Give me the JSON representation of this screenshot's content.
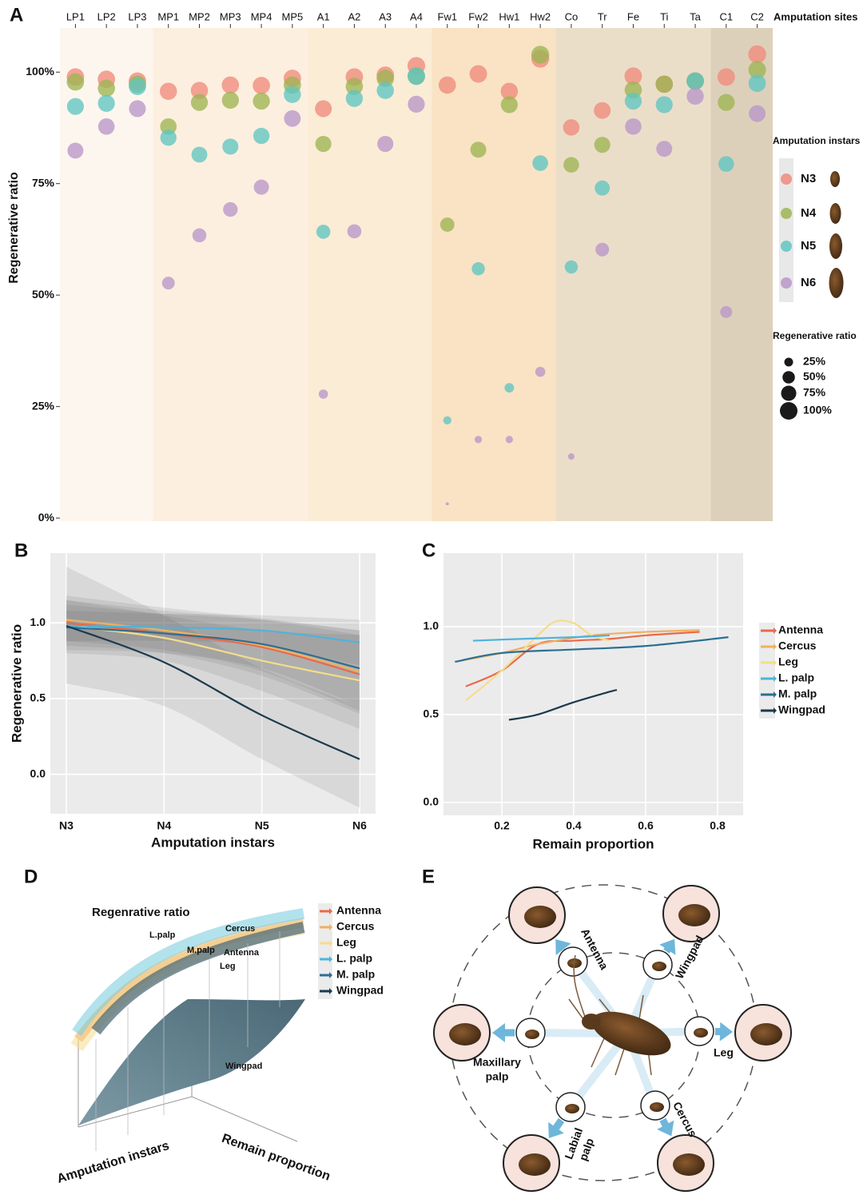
{
  "chart_data": [
    {
      "type": "dot",
      "panel_label": "A",
      "x_label": "Amputation sites",
      "y_label": "Regenerative ratio",
      "categories": [
        "LP1",
        "LP2",
        "LP3",
        "MP1",
        "MP2",
        "MP3",
        "MP4",
        "MP5",
        "A1",
        "A2",
        "A3",
        "A4",
        "Fw1",
        "Fw2",
        "Hw1",
        "Hw2",
        "Co",
        "Tr",
        "Fe",
        "Ti",
        "Ta",
        "C1",
        "C2"
      ],
      "series": [
        {
          "name": "N3",
          "color": "#f08a7c",
          "values": [
            98.9,
            98.4,
            98,
            95.7,
            95.9,
            97.1,
            97,
            98.6,
            91.8,
            98.9,
            99.3,
            101.4,
            97.1,
            99.6,
            95.7,
            103,
            87.6,
            91.4,
            99.1,
            97.3,
            98,
            98.9,
            104
          ]
        },
        {
          "name": "N4",
          "color": "#9cb552",
          "values": [
            97.8,
            96.4,
            97.3,
            87.8,
            93.2,
            93.7,
            93.5,
            97.1,
            83.9,
            96.8,
            98.6,
            99.1,
            65.8,
            82.6,
            92.7,
            103.9,
            79.2,
            83.7,
            96,
            97.3,
            98,
            93.2,
            100.5
          ]
        },
        {
          "name": "N5",
          "color": "#5fc5c2",
          "values": [
            92.3,
            93,
            96.8,
            85.3,
            81.5,
            83.3,
            85.7,
            95,
            64.2,
            94.1,
            95.9,
            99.1,
            21.9,
            55.9,
            29.2,
            79.6,
            56.3,
            74,
            93.5,
            92.7,
            98,
            79.4,
            97.5
          ]
        },
        {
          "name": "N6",
          "color": "#b996c9",
          "values": [
            82.4,
            87.8,
            91.8,
            52.7,
            63.4,
            69.2,
            74.2,
            89.6,
            27.8,
            64.3,
            83.9,
            92.8,
            3.2,
            17.6,
            17.6,
            32.8,
            13.8,
            60.2,
            87.8,
            82.8,
            94.6,
            46.2,
            90.7
          ]
        }
      ],
      "ylim": [
        -0.7,
        109.9
      ],
      "yticks": [
        {
          "value": 0,
          "label": "0%"
        },
        {
          "value": 25,
          "label": "25%"
        },
        {
          "value": 50,
          "label": "50%"
        },
        {
          "value": 75,
          "label": "75%"
        },
        {
          "value": 100,
          "label": "100%"
        }
      ],
      "legend_title": "Amputation instars",
      "size_legend_title": "Regenerative ratio",
      "size_legend": [
        {
          "value": 25,
          "label": "25%"
        },
        {
          "value": 50,
          "label": "50%"
        },
        {
          "value": 75,
          "label": "75%"
        },
        {
          "value": 100,
          "label": "100%"
        }
      ]
    },
    {
      "type": "line",
      "panel_label": "B",
      "x_label": "Amputation instars",
      "y_label": "Regenerative ratio",
      "categories": [
        "N3",
        "N4",
        "N5",
        "N6"
      ],
      "series": [
        {
          "name": "Antenna",
          "color": "#e8694a",
          "values": [
            1.0,
            0.93,
            0.84,
            0.66
          ],
          "lower": [
            0.85,
            0.8,
            0.65,
            0.4
          ],
          "upper": [
            1.15,
            1.08,
            1.02,
            0.92
          ]
        },
        {
          "name": "Cercus",
          "color": "#f0b060",
          "values": [
            1.02,
            0.95,
            0.85,
            0.68
          ],
          "lower": [
            0.88,
            0.82,
            0.68,
            0.42
          ],
          "upper": [
            1.18,
            1.1,
            1.03,
            0.95
          ]
        },
        {
          "name": "Leg",
          "color": "#f5dc8c",
          "values": [
            0.98,
            0.9,
            0.75,
            0.62
          ],
          "lower": [
            0.8,
            0.75,
            0.55,
            0.3
          ],
          "upper": [
            1.15,
            1.05,
            0.95,
            0.92
          ]
        },
        {
          "name": "L. palp",
          "color": "#4fb3d9",
          "values": [
            0.98,
            0.97,
            0.95,
            0.87
          ],
          "lower": [
            0.88,
            0.88,
            0.85,
            0.72
          ],
          "upper": [
            1.08,
            1.06,
            1.05,
            1.02
          ]
        },
        {
          "name": "M. palp",
          "color": "#2a6f94",
          "values": [
            0.97,
            0.93,
            0.86,
            0.7
          ],
          "lower": [
            0.82,
            0.8,
            0.7,
            0.45
          ],
          "upper": [
            1.12,
            1.06,
            1.02,
            0.95
          ]
        },
        {
          "name": "Wingpad",
          "color": "#1b3a4b",
          "values": [
            0.98,
            0.74,
            0.39,
            0.1
          ],
          "lower": [
            0.6,
            0.45,
            0.1,
            -0.22
          ],
          "upper": [
            1.37,
            1.05,
            0.7,
            0.45
          ]
        }
      ],
      "ylim": [
        -0.26,
        1.46
      ],
      "yticks": [
        {
          "value": 0,
          "label": "0.0"
        },
        0.5,
        {
          "value": 1,
          "label": "1.0"
        }
      ],
      "grid": true
    },
    {
      "type": "line",
      "panel_label": "C",
      "x_label": "Remain proportion",
      "series": [
        {
          "name": "Antenna",
          "color": "#e8694a",
          "x": [
            0.1,
            0.2,
            0.3,
            0.4,
            0.5,
            0.6,
            0.75
          ],
          "values": [
            0.66,
            0.75,
            0.9,
            0.92,
            0.93,
            0.95,
            0.97
          ]
        },
        {
          "name": "Cercus",
          "color": "#f0b060",
          "x": [
            0.07,
            0.2,
            0.3,
            0.45,
            0.6,
            0.75
          ],
          "values": [
            0.8,
            0.85,
            0.9,
            0.95,
            0.97,
            0.98
          ]
        },
        {
          "name": "Leg",
          "color": "#f5dc8c",
          "x": [
            0.1,
            0.2,
            0.3,
            0.35,
            0.4,
            0.45,
            0.5
          ],
          "values": [
            0.58,
            0.75,
            0.95,
            1.03,
            1.02,
            0.95,
            0.92
          ]
        },
        {
          "name": "L. palp",
          "color": "#4fb3d9",
          "x": [
            0.12,
            0.25,
            0.4,
            0.5
          ],
          "values": [
            0.92,
            0.93,
            0.94,
            0.95
          ]
        },
        {
          "name": "M. palp",
          "color": "#2a6f94",
          "x": [
            0.07,
            0.2,
            0.4,
            0.6,
            0.83
          ],
          "values": [
            0.8,
            0.85,
            0.87,
            0.89,
            0.94
          ]
        },
        {
          "name": "Wingpad",
          "color": "#1b3a4b",
          "x": [
            0.22,
            0.3,
            0.4,
            0.5,
            0.52
          ],
          "values": [
            0.47,
            0.5,
            0.57,
            0.63,
            0.64
          ]
        }
      ],
      "xlim": [
        0.038,
        0.871
      ],
      "xticks": [
        0.2,
        0.4,
        0.6,
        0.8
      ],
      "ylim": [
        -0.073,
        1.418
      ],
      "yticks": [
        {
          "value": 0,
          "label": "0.0"
        },
        0.5,
        {
          "value": 1,
          "label": "1.0"
        }
      ],
      "grid": true,
      "legend": "right"
    }
  ],
  "figure_d": {
    "panel_label": "D",
    "title": "Regenrative ratio",
    "surface_labels": [
      "L.palp",
      "Cercus",
      "M.palp",
      "Antenna",
      "Leg",
      "Wingpad"
    ],
    "legend": [
      {
        "name": "Antenna",
        "color": "#e8694a"
      },
      {
        "name": "Cercus",
        "color": "#f0b060"
      },
      {
        "name": "Leg",
        "color": "#f5dc8c"
      },
      {
        "name": "L. palp",
        "color": "#4fb3d9"
      },
      {
        "name": "M. palp",
        "color": "#2a6f94"
      },
      {
        "name": "Wingpad",
        "color": "#1b3a4b"
      }
    ],
    "x_label": "Amputation instars",
    "y_label": "Remain proportion"
  },
  "figure_e": {
    "panel_label": "E",
    "labels": [
      {
        "lines": [
          "Antenna"
        ]
      },
      {
        "lines": [
          "Wingpad"
        ]
      },
      {
        "lines": [
          "Leg"
        ]
      },
      {
        "lines": [
          "Cercus"
        ]
      },
      {
        "lines": [
          "Labial",
          "palp"
        ]
      },
      {
        "lines": [
          "Maxillary",
          "palp"
        ]
      }
    ]
  }
}
